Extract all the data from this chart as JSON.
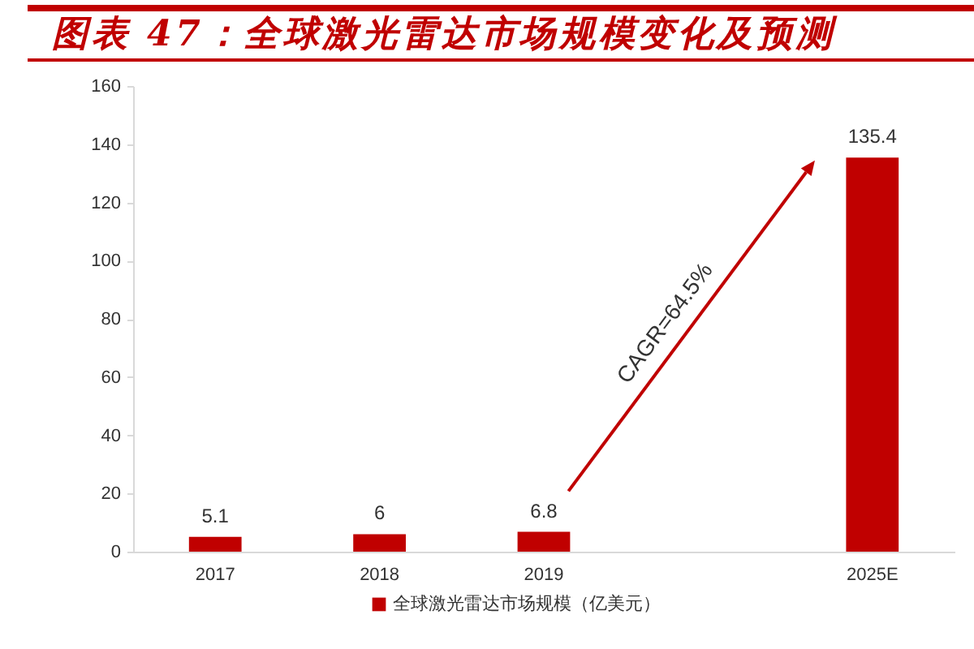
{
  "chart_data": {
    "type": "bar",
    "title": "图表 47：全球激光雷达市场规模变化及预测",
    "categories": [
      "2017",
      "2018",
      "2019",
      null,
      "2025E"
    ],
    "series": [
      {
        "name": "全球激光雷达市场规模（亿美元）",
        "color": "#c00000",
        "values": [
          5.1,
          6,
          6.8,
          null,
          135.4
        ]
      }
    ],
    "ylim": [
      0,
      160
    ],
    "yticks": [
      0,
      20,
      40,
      60,
      80,
      100,
      120,
      140,
      160
    ],
    "data_labels": true,
    "legend": "bottom",
    "annotations": [
      "CAGR=64.5%"
    ]
  }
}
